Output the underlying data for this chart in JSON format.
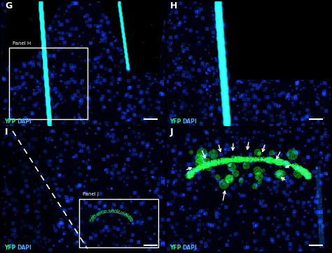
{
  "figsize": [
    4.74,
    3.61
  ],
  "dpi": 100,
  "bg_color": "#000000",
  "yfp_color": "#00ff88",
  "dapi_color": "#44aaff",
  "text_yfp": "YFP",
  "text_dapi": "DAPI",
  "panel_H_text": "Panel H",
  "panel_J_text": "Panel J"
}
